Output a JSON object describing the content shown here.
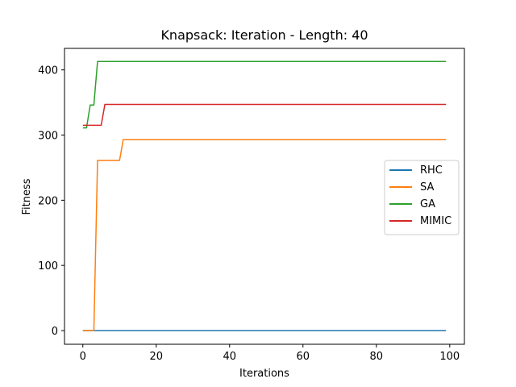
{
  "chart_data": {
    "type": "line",
    "title": "Knapsack: Iteration - Length: 40",
    "xlabel": "Iterations",
    "ylabel": "Fitness",
    "xlim": [
      -5,
      104
    ],
    "ylim": [
      -21,
      433
    ],
    "xticks": [
      0,
      20,
      40,
      60,
      80,
      100
    ],
    "yticks": [
      0,
      100,
      200,
      300,
      400
    ],
    "grid": false,
    "legend_position": "center-right",
    "series": [
      {
        "name": "RHC",
        "color": "#1f77b4",
        "points": [
          [
            0,
            0
          ],
          [
            99,
            0
          ]
        ]
      },
      {
        "name": "SA",
        "color": "#ff7f0e",
        "points": [
          [
            0,
            0
          ],
          [
            3,
            0
          ],
          [
            4,
            261
          ],
          [
            10,
            261
          ],
          [
            11,
            293
          ],
          [
            99,
            293
          ]
        ]
      },
      {
        "name": "GA",
        "color": "#2ca02c",
        "points": [
          [
            0,
            311
          ],
          [
            1,
            311
          ],
          [
            2,
            346
          ],
          [
            3,
            346
          ],
          [
            4,
            413
          ],
          [
            99,
            413
          ]
        ]
      },
      {
        "name": "MIMIC",
        "color": "#d62728",
        "points": [
          [
            0,
            315
          ],
          [
            5,
            315
          ],
          [
            6,
            347
          ],
          [
            99,
            347
          ]
        ]
      }
    ]
  }
}
